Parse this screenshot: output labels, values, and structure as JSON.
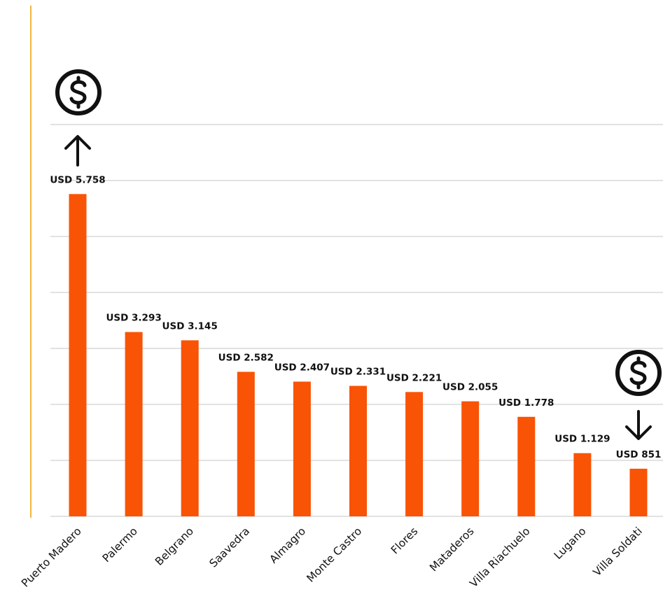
{
  "chart_data": {
    "type": "bar",
    "categories": [
      "Puerto Madero",
      "Palermo",
      "Belgrano",
      "Saavedra",
      "Almagro",
      "Monte Castro",
      "Flores",
      "Mataderos",
      "Villa Riachuelo",
      "Lugano",
      "Villa Soldati"
    ],
    "values": [
      5758,
      3293,
      3145,
      2582,
      2407,
      2331,
      2221,
      2055,
      1778,
      1129,
      851
    ],
    "value_labels": [
      "USD 5.758",
      "USD 3.293",
      "USD 3.145",
      "USD 2.582",
      "USD 2.407",
      "USD 2.331",
      "USD 2.221",
      "USD 2.055",
      "USD 1.778",
      "USD 1.129",
      "USD 851"
    ],
    "ylim": [
      0,
      7000
    ],
    "grid": true,
    "bar_color": "#f95306",
    "axis_line_color": "#f2b640",
    "gridline_color": "#d9d9d9",
    "icons": [
      {
        "name": "dollar-icon",
        "category": "Puerto Madero"
      },
      {
        "name": "arrow-up-icon",
        "category": "Puerto Madero"
      },
      {
        "name": "dollar-icon",
        "category": "Villa Soldati"
      },
      {
        "name": "arrow-down-icon",
        "category": "Villa Soldati"
      }
    ]
  }
}
